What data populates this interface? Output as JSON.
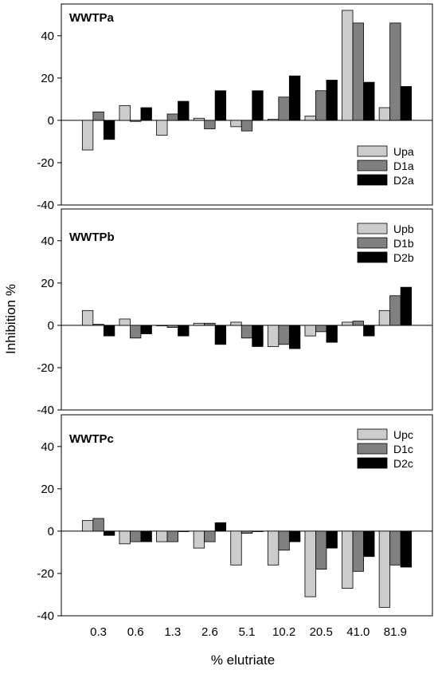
{
  "chart_data": {
    "type": "bar",
    "ylabel": "Inhibition %",
    "xlabel": "% elutriate",
    "categories": [
      "0.3",
      "0.6",
      "1.3",
      "2.6",
      "5.1",
      "10.2",
      "20.5",
      "41.0",
      "81.9"
    ],
    "ylim": [
      -40,
      55
    ],
    "yticks": [
      -40,
      -20,
      0,
      20,
      40
    ],
    "grid": false,
    "colors": [
      "#cccccc",
      "#808080",
      "#000000"
    ],
    "panels": [
      {
        "title": "WWTPa",
        "legend_position": "lower-right",
        "series": [
          {
            "name": "Upa",
            "values": [
              -14,
              7,
              -7,
              1,
              -3,
              0.5,
              2,
              52,
              6
            ]
          },
          {
            "name": "D1a",
            "values": [
              4,
              -0.5,
              3,
              -4,
              -5,
              11,
              14,
              46,
              46
            ]
          },
          {
            "name": "D2a",
            "values": [
              -9,
              6,
              9,
              14,
              14,
              21,
              19,
              18,
              16
            ]
          }
        ]
      },
      {
        "title": "WWTPb",
        "legend_position": "top-right",
        "series": [
          {
            "name": "Upb",
            "values": [
              7,
              3,
              0,
              1,
              1.5,
              -10,
              -5,
              1.5,
              7
            ]
          },
          {
            "name": "D1b",
            "values": [
              0.5,
              -6,
              -1,
              1,
              -6,
              -9,
              -3,
              2,
              14
            ]
          },
          {
            "name": "D2b",
            "values": [
              -5,
              -4,
              -5,
              -9,
              -10,
              -11,
              -8,
              -5,
              18
            ]
          }
        ]
      },
      {
        "title": "WWTPc",
        "legend_position": "top-right",
        "series": [
          {
            "name": "Upc",
            "values": [
              5,
              -6,
              -5,
              -8,
              -16,
              -16,
              -31,
              -27,
              -36
            ]
          },
          {
            "name": "D1c",
            "values": [
              6,
              -5,
              -5,
              -5,
              -1,
              -9,
              -18,
              -19,
              -16
            ]
          },
          {
            "name": "D2c",
            "values": [
              -2,
              -5,
              0,
              4,
              0,
              -5,
              -8,
              -12,
              -17
            ]
          }
        ]
      }
    ]
  }
}
